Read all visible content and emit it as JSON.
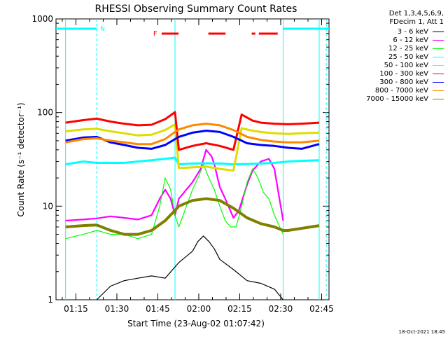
{
  "chart_data": {
    "type": "line",
    "title": "RHESSI Observing Summary Count Rates",
    "xlabel": "Start Time (23-Aug-02 01:07:42)",
    "ylabel": "Count Rate (s⁻¹ detector⁻¹)",
    "y_scale": "log",
    "ylim": [
      1,
      1000
    ],
    "y_ticks": [
      "1",
      "10",
      "100",
      "1000"
    ],
    "x_unit": "minutes after 01:07:42",
    "xlim_minutes": [
      0,
      100
    ],
    "x_tick_labels": [
      "01:15",
      "01:30",
      "01:45",
      "02:00",
      "02:15",
      "02:30",
      "02:45"
    ],
    "x_tick_minutes": [
      7.3,
      22.3,
      37.3,
      52.3,
      67.3,
      82.3,
      97.3
    ],
    "legend_header": [
      "Det 1,3,4,5,6,9,",
      "FDecim 1, Att 1"
    ],
    "footer": "18-Oct-2021 18:45",
    "flags": {
      "night_label": "N",
      "flare_label": "F",
      "night_bars": [
        [
          0,
          14.9
        ],
        [
          83.2,
          100
        ]
      ],
      "flare_bars": [
        [
          38.7,
          44.9
        ],
        [
          55.8,
          62.1
        ],
        [
          71.7,
          73.0
        ],
        [
          74.3,
          81.2
        ]
      ],
      "boundaries": [
        3.5,
        14.9,
        43.6,
        83.2,
        96.4,
        99.0
      ]
    },
    "grid": false,
    "series": [
      {
        "name": "3 - 6 keV",
        "color": "#000000",
        "x": [
          14.9,
          20,
          25,
          30,
          35,
          40,
          45,
          50,
          52,
          54,
          56,
          58,
          60,
          65,
          70,
          75,
          80,
          83.2
        ],
        "y": [
          1,
          1.4,
          1.6,
          1.7,
          1.8,
          1.7,
          2.5,
          3.3,
          4.2,
          4.8,
          4.2,
          3.5,
          2.7,
          2.1,
          1.6,
          1.5,
          1.3,
          1
        ]
      },
      {
        "name": "6 - 12 keV",
        "color": "#ff00ff",
        "x": [
          3.5,
          10,
          15,
          20,
          25,
          30,
          35,
          38,
          40,
          42,
          43.6,
          45,
          50,
          53,
          55,
          57,
          58,
          60,
          62,
          65,
          67,
          70,
          72,
          75,
          78,
          80,
          83.2
        ],
        "y": [
          7,
          7.2,
          7.4,
          7.8,
          7.5,
          7.2,
          8,
          12,
          15,
          12,
          8,
          12,
          18,
          25,
          40,
          34,
          28,
          16,
          12,
          7.5,
          9,
          17,
          24,
          30,
          32,
          25,
          7
        ]
      },
      {
        "name": "12 - 25 keV",
        "color": "#00ff00",
        "x": [
          3.5,
          10,
          15,
          20,
          25,
          30,
          35,
          38,
          40,
          42,
          43.6,
          45,
          50,
          52,
          54,
          56,
          58,
          60,
          62,
          64,
          66,
          68,
          70,
          72,
          74,
          76,
          78,
          80,
          83.2
        ],
        "y": [
          4.5,
          5,
          5.5,
          5,
          5,
          4.5,
          5,
          10,
          20,
          15,
          8,
          6,
          15,
          20,
          28,
          20,
          15,
          10,
          7,
          6,
          6,
          10,
          18,
          25,
          20,
          14,
          12,
          8,
          5
        ]
      },
      {
        "name": "25 - 50 keV",
        "color": "#00ffff",
        "x": [
          3.5,
          10,
          14.9,
          20,
          25,
          30,
          35,
          40,
          43.6,
          45,
          50,
          55,
          60,
          65,
          70,
          75,
          80,
          85,
          90,
          96.4
        ],
        "y": [
          28,
          30,
          29,
          29,
          29,
          30,
          31,
          32,
          33,
          28,
          28.5,
          28.7,
          28.5,
          28,
          28.2,
          28.5,
          29,
          30,
          30.5,
          31
        ]
      },
      {
        "name": "50 - 100 keV",
        "color": "#dddd00",
        "x": [
          3.5,
          10,
          14.9,
          20,
          25,
          30,
          35,
          40,
          43.6,
          45,
          50,
          55,
          60,
          65,
          68,
          72,
          75,
          80,
          85,
          90,
          96.4
        ],
        "y": [
          63,
          66,
          67,
          63,
          60,
          57,
          58,
          65,
          75,
          25.5,
          26,
          26.5,
          25,
          24,
          68,
          64,
          62,
          60,
          59,
          60,
          61
        ]
      },
      {
        "name": "100 - 300 keV",
        "color": "#ff0000",
        "x": [
          3.5,
          10,
          14.9,
          20,
          25,
          30,
          35,
          40,
          43.6,
          45,
          50,
          55,
          60,
          65,
          68,
          72,
          75,
          80,
          85,
          90,
          96.4
        ],
        "y": [
          78,
          83,
          86,
          80,
          76,
          73,
          74,
          85,
          101,
          40,
          44,
          47,
          44,
          40,
          95,
          82,
          78,
          76,
          75,
          76,
          78
        ]
      },
      {
        "name": "300 - 800 keV",
        "color": "#0000ff",
        "x": [
          3.5,
          10,
          14.9,
          20,
          25,
          30,
          35,
          40,
          43.6,
          45,
          50,
          55,
          60,
          65,
          70,
          75,
          80,
          85,
          90,
          96.4
        ],
        "y": [
          50,
          54,
          55,
          48,
          45,
          42,
          41,
          45,
          52,
          55,
          61,
          64,
          62,
          55,
          47,
          45,
          44,
          42,
          41,
          46
        ]
      },
      {
        "name": "800 - 7000 keV",
        "color": "#ff8800",
        "x": [
          3.5,
          10,
          14.9,
          20,
          25,
          30,
          35,
          40,
          43.6,
          45,
          50,
          55,
          60,
          65,
          70,
          75,
          80,
          85,
          90,
          96.4
        ],
        "y": [
          48,
          52,
          53,
          50,
          48,
          46,
          46,
          52,
          62,
          66,
          73,
          76,
          73,
          65,
          55,
          51,
          49,
          48,
          48,
          50
        ]
      },
      {
        "name": "7000 - 15000 keV",
        "color": "#808000",
        "x": [
          3.5,
          10,
          14.9,
          20,
          25,
          30,
          35,
          40,
          43.6,
          45,
          50,
          55,
          60,
          65,
          70,
          75,
          80,
          83.2,
          85,
          90,
          96.4
        ],
        "y": [
          6,
          6.2,
          6.3,
          5.5,
          5,
          5,
          5.5,
          7,
          9,
          10,
          11.5,
          12,
          11.5,
          9.5,
          7.5,
          6.5,
          6,
          5.5,
          5.5,
          5.8,
          6.2
        ]
      }
    ]
  }
}
